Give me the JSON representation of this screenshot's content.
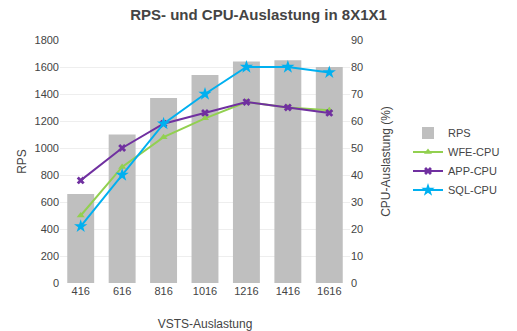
{
  "chart_data": {
    "type": "bar",
    "title": "RPS- und CPU-Auslastung in 8X1X1",
    "xlabel": "VSTS-Auslastung",
    "ylabel": "RPS",
    "y2label": "CPU-Auslastung (%)",
    "categories": [
      416,
      616,
      816,
      1016,
      1216,
      1416,
      1616
    ],
    "series": [
      {
        "name": "RPS",
        "type": "bar",
        "color": "#bfbfbf",
        "values": [
          660,
          1100,
          1370,
          1540,
          1640,
          1650,
          1600
        ]
      },
      {
        "name": "WFE-CPU",
        "type": "line",
        "axis": "y2",
        "color": "#92d050",
        "marker": "triangle-up",
        "values": [
          25,
          43,
          54,
          61,
          67,
          65,
          64
        ]
      },
      {
        "name": "APP-CPU",
        "type": "line",
        "axis": "y2",
        "color": "#7030a0",
        "marker": "x",
        "values": [
          38,
          50,
          59,
          63,
          67,
          65,
          63
        ]
      },
      {
        "name": "SQL-CPU",
        "type": "line",
        "axis": "y2",
        "color": "#00b0f0",
        "marker": "star",
        "values": [
          21,
          40,
          59,
          70,
          80,
          80,
          78
        ]
      }
    ],
    "ylim": [
      0,
      1800
    ],
    "yticks": [
      0,
      200,
      400,
      600,
      800,
      1000,
      1200,
      1400,
      1600,
      1800
    ],
    "y2lim": [
      0,
      90
    ],
    "y2ticks": [
      0,
      10,
      20,
      30,
      40,
      50,
      60,
      70,
      80,
      90
    ],
    "grid": true,
    "legend": "right"
  }
}
